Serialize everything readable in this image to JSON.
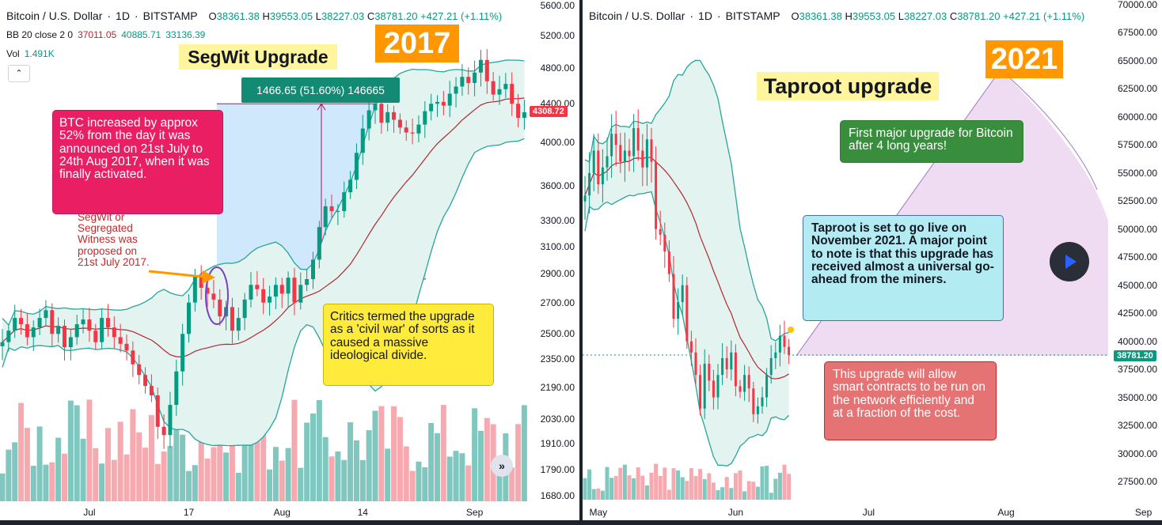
{
  "colors": {
    "up": "#089981",
    "down": "#f23645",
    "upVol": "#7fc7bf",
    "downVol": "#f7a9b0",
    "bandFill": "#e3f3f0",
    "bandLine": "#26a69a",
    "basis": "#b22833",
    "accent": "#ff9800"
  },
  "left": {
    "header": {
      "symbol": "Bitcoin / U.S. Dollar",
      "interval": "1D",
      "exchange": "BITSTAMP",
      "o_label": "O",
      "o": "38361.38",
      "h_label": "H",
      "h": "39553.05",
      "l_label": "L",
      "l": "38227.03",
      "c_label": "C",
      "c": "38781.20",
      "change": "+427.21 (+1.11%)"
    },
    "bb": {
      "label": "BB 20 close 2 0",
      "v1": "37011.05",
      "v2": "40885.71",
      "v3": "33136.39"
    },
    "vol": {
      "label": "Vol",
      "value": "1.491K"
    },
    "collapse_icon": "chevron-up-icon",
    "year_label": "2017",
    "headline": "SegWit Upgrade",
    "measure_label": "1466.65 (51.60%) 146665",
    "price_tag": "4308.72",
    "note_pink": "BTC increased by approx 52% from the day it was announced on 21st July to 24th Aug 2017, when it was finally activated.",
    "note_red": "SegWit or Segregated Witness was proposed on 21st July 2017.",
    "note_yellow": "Critics termed the upgrade as a 'civil war' of sorts as it caused a massive ideological divide.",
    "scroll_icon": "double-chevron-right-icon",
    "scroll_glyph": "»",
    "yticks": [
      {
        "label": "5600.00",
        "price": 5600
      },
      {
        "label": "5200.00",
        "price": 5200
      },
      {
        "label": "4800.00",
        "price": 4800
      },
      {
        "label": "4400.00",
        "price": 4400
      },
      {
        "label": "4000.00",
        "price": 4000
      },
      {
        "label": "3600.00",
        "price": 3600
      },
      {
        "label": "3300.00",
        "price": 3300
      },
      {
        "label": "3100.00",
        "price": 3100
      },
      {
        "label": "2900.00",
        "price": 2900
      },
      {
        "label": "2700.00",
        "price": 2700
      },
      {
        "label": "2500.00",
        "price": 2500
      },
      {
        "label": "2350.00",
        "price": 2350
      },
      {
        "label": "2190.00",
        "price": 2190
      },
      {
        "label": "2030.00",
        "price": 2030
      },
      {
        "label": "1910.00",
        "price": 1910
      },
      {
        "label": "1790.00",
        "price": 1790
      },
      {
        "label": "1680.00",
        "price": 1680
      }
    ],
    "xticks": [
      {
        "label": "Jul",
        "bar": 14
      },
      {
        "label": "17",
        "bar": 30
      },
      {
        "label": "Aug",
        "bar": 45
      },
      {
        "label": "14",
        "bar": 58
      },
      {
        "label": "Sep",
        "bar": 76
      }
    ]
  },
  "right": {
    "header": {
      "symbol": "Bitcoin / U.S. Dollar",
      "interval": "1D",
      "exchange": "BITSTAMP",
      "o_label": "O",
      "o": "38361.38",
      "h_label": "H",
      "h": "39553.05",
      "l_label": "L",
      "l": "38227.03",
      "c_label": "C",
      "c": "38781.20",
      "change": "+427.21 (+1.11%)"
    },
    "year_label": "2021",
    "headline": "Taproot upgrade",
    "note_green": "First major upgrade for Bitcoin after 4 long years!",
    "note_blue": "Taproot is set to go live on November 2021. A major point to note is that this upgrade has received almost a universal go-ahead from the miners.",
    "note_red": "This upgrade will allow smart contracts to be run on the network efficiently and at a fraction of the cost.",
    "price_tag": "38781.20",
    "play_icon": "play-icon",
    "yticks": [
      {
        "label": "70000.00",
        "price": 70000
      },
      {
        "label": "67500.00",
        "price": 67500
      },
      {
        "label": "65000.00",
        "price": 65000
      },
      {
        "label": "62500.00",
        "price": 62500
      },
      {
        "label": "60000.00",
        "price": 60000
      },
      {
        "label": "57500.00",
        "price": 57500
      },
      {
        "label": "55000.00",
        "price": 55000
      },
      {
        "label": "52500.00",
        "price": 52500
      },
      {
        "label": "50000.00",
        "price": 50000
      },
      {
        "label": "47500.00",
        "price": 47500
      },
      {
        "label": "45000.00",
        "price": 45000
      },
      {
        "label": "42500.00",
        "price": 42500
      },
      {
        "label": "40000.00",
        "price": 40000
      },
      {
        "label": "37500.00",
        "price": 37500
      },
      {
        "label": "35000.00",
        "price": 35000
      },
      {
        "label": "32500.00",
        "price": 32500
      },
      {
        "label": "30000.00",
        "price": 30000
      },
      {
        "label": "27500.00",
        "price": 27500
      }
    ],
    "xticks": [
      {
        "label": "May",
        "bar": 3
      },
      {
        "label": "Jun",
        "bar": 34
      },
      {
        "label": "Jul",
        "bar": 64
      },
      {
        "label": "Aug",
        "bar": 95
      },
      {
        "label": "Sep",
        "bar": 126
      }
    ]
  },
  "chart_data": [
    {
      "type": "candlestick",
      "title": "Bitcoin / U.S. Dollar · 1D · BITSTAMP (2017)",
      "x_range": [
        "Jun 2017",
        "Sep 2017"
      ],
      "y_range": [
        1680,
        5600
      ],
      "log_scale": true,
      "annotations": [
        "SegWit Upgrade",
        "2017",
        "1466.65 (51.60%) 146665"
      ],
      "close_series": [
        2450,
        2520,
        2600,
        2560,
        2480,
        2540,
        2600,
        2650,
        2500,
        2550,
        2420,
        2480,
        2560,
        2590,
        2520,
        2450,
        2600,
        2540,
        2480,
        2440,
        2400,
        2320,
        2260,
        2200,
        2150,
        1990,
        1950,
        2100,
        2280,
        2500,
        2700,
        2880,
        2800,
        2760,
        2720,
        2610,
        2670,
        2520,
        2600,
        2720,
        2820,
        2790,
        2700,
        2740,
        2820,
        2760,
        2870,
        2700,
        2820,
        2860,
        3000,
        3250,
        3420,
        3380,
        3380,
        3540,
        3650,
        3900,
        4140,
        4330,
        4400,
        4200,
        4310,
        4230,
        4150,
        4100,
        4090,
        4180,
        4320,
        4400,
        4420,
        4380,
        4510,
        4590,
        4700,
        4630,
        4750,
        4900,
        4650,
        4500,
        4560,
        4620,
        4400,
        4250,
        4309
      ]
    },
    {
      "type": "candlestick",
      "title": "Bitcoin / U.S. Dollar · 1D · BITSTAMP (2021)",
      "x_range": [
        "Apr 2021",
        "Sep 2021"
      ],
      "y_range": [
        27500,
        70000
      ],
      "annotations": [
        "Taproot upgrade",
        "2021"
      ],
      "close_series": [
        53000,
        55000,
        57000,
        54000,
        55500,
        56500,
        58500,
        57500,
        56000,
        57000,
        56500,
        59000,
        57000,
        55500,
        58000,
        56000,
        50000,
        49500,
        48000,
        46000,
        42000,
        43500,
        45000,
        40000,
        39000,
        37000,
        34000,
        38000,
        36500,
        35000,
        37000,
        38500,
        37500,
        39000,
        36000,
        35500,
        37000,
        35800,
        33500,
        34200,
        35000,
        37000,
        38500,
        39000,
        40500,
        39500,
        38781
      ]
    }
  ]
}
